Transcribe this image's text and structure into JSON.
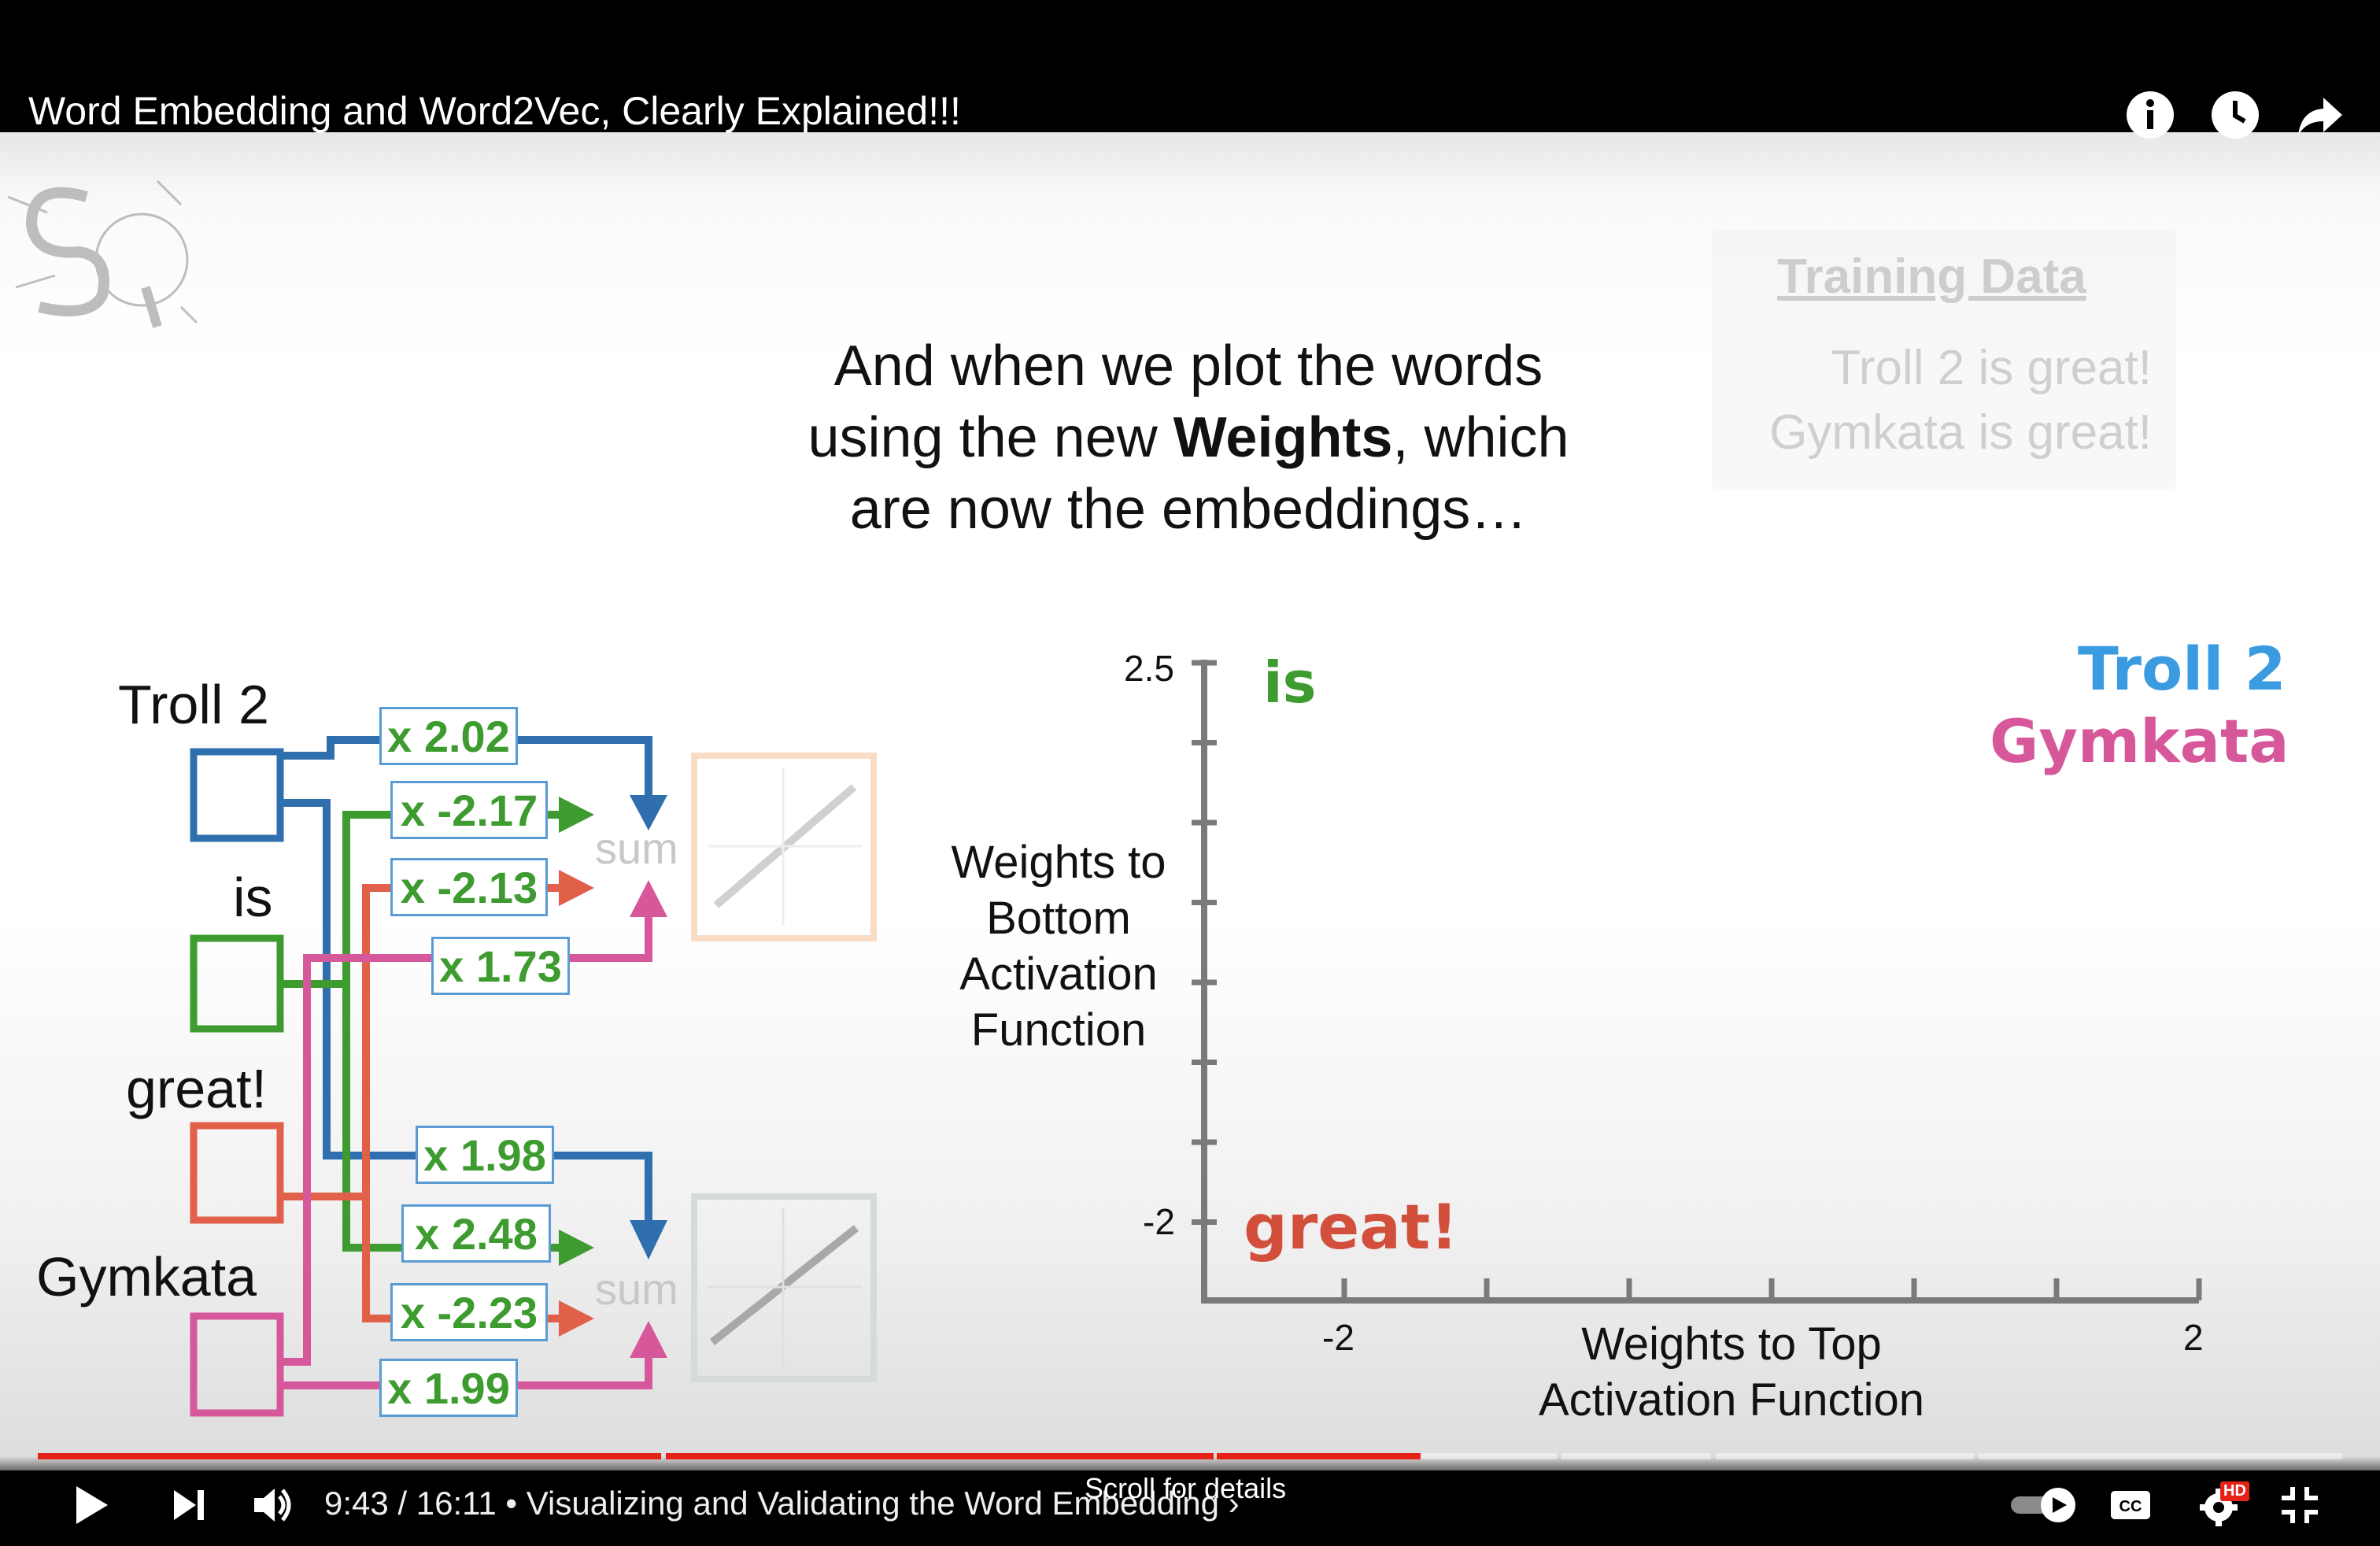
{
  "video": {
    "title": "Word Embedding and Word2Vec, Clearly Explained!!!"
  },
  "slide": {
    "caption_line1": "And when we plot the words",
    "caption_line2_pre": "using the new ",
    "caption_line2_bold": "Weights",
    "caption_line2_post": ", which",
    "caption_line3": "are now the embeddings…",
    "training_data": {
      "title": "Training Data",
      "lines": [
        "Troll 2 is great!",
        "Gymkata is great!"
      ]
    },
    "network": {
      "words": [
        "Troll 2",
        "is",
        "great!",
        "Gymkata"
      ],
      "top_weights": [
        "x 2.02",
        "x -2.17",
        "x -2.13",
        "x 1.73"
      ],
      "bottom_weights": [
        "x 1.98",
        "x 2.48",
        "x -2.23",
        "x 1.99"
      ],
      "sum_label": "sum",
      "colors": {
        "troll2": "#2f6fad",
        "is": "#3d9b2f",
        "great": "#e0604a",
        "gymkata": "#d6579a"
      }
    }
  },
  "chart_data": {
    "type": "scatter",
    "xlabel": "Weights to Top Activation Function",
    "ylabel": "Weights to Bottom Activation Function",
    "x_ticks": [
      "-2",
      "2"
    ],
    "y_ticks": [
      "2.5",
      "-2"
    ],
    "points": [
      {
        "label": "is",
        "x": -2.17,
        "y": 2.48,
        "color": "#3d9b2f"
      },
      {
        "label": "great!",
        "x": -2.13,
        "y": -2.23,
        "color": "#d24f3c"
      },
      {
        "label": "Troll 2",
        "x": 2.02,
        "y": 1.98,
        "color": "#3a9be0"
      },
      {
        "label": "Gymkata",
        "x": 1.73,
        "y": 1.99,
        "color": "#d6579a"
      }
    ]
  },
  "controls": {
    "time": "9:43 / 16:11",
    "chapter": " • Visualizing and Validating the Word Embedding",
    "chapter_chevron": "›",
    "scroll_hint": "Scroll for details",
    "hd_badge": "HD",
    "progress_fraction": 0.6
  }
}
